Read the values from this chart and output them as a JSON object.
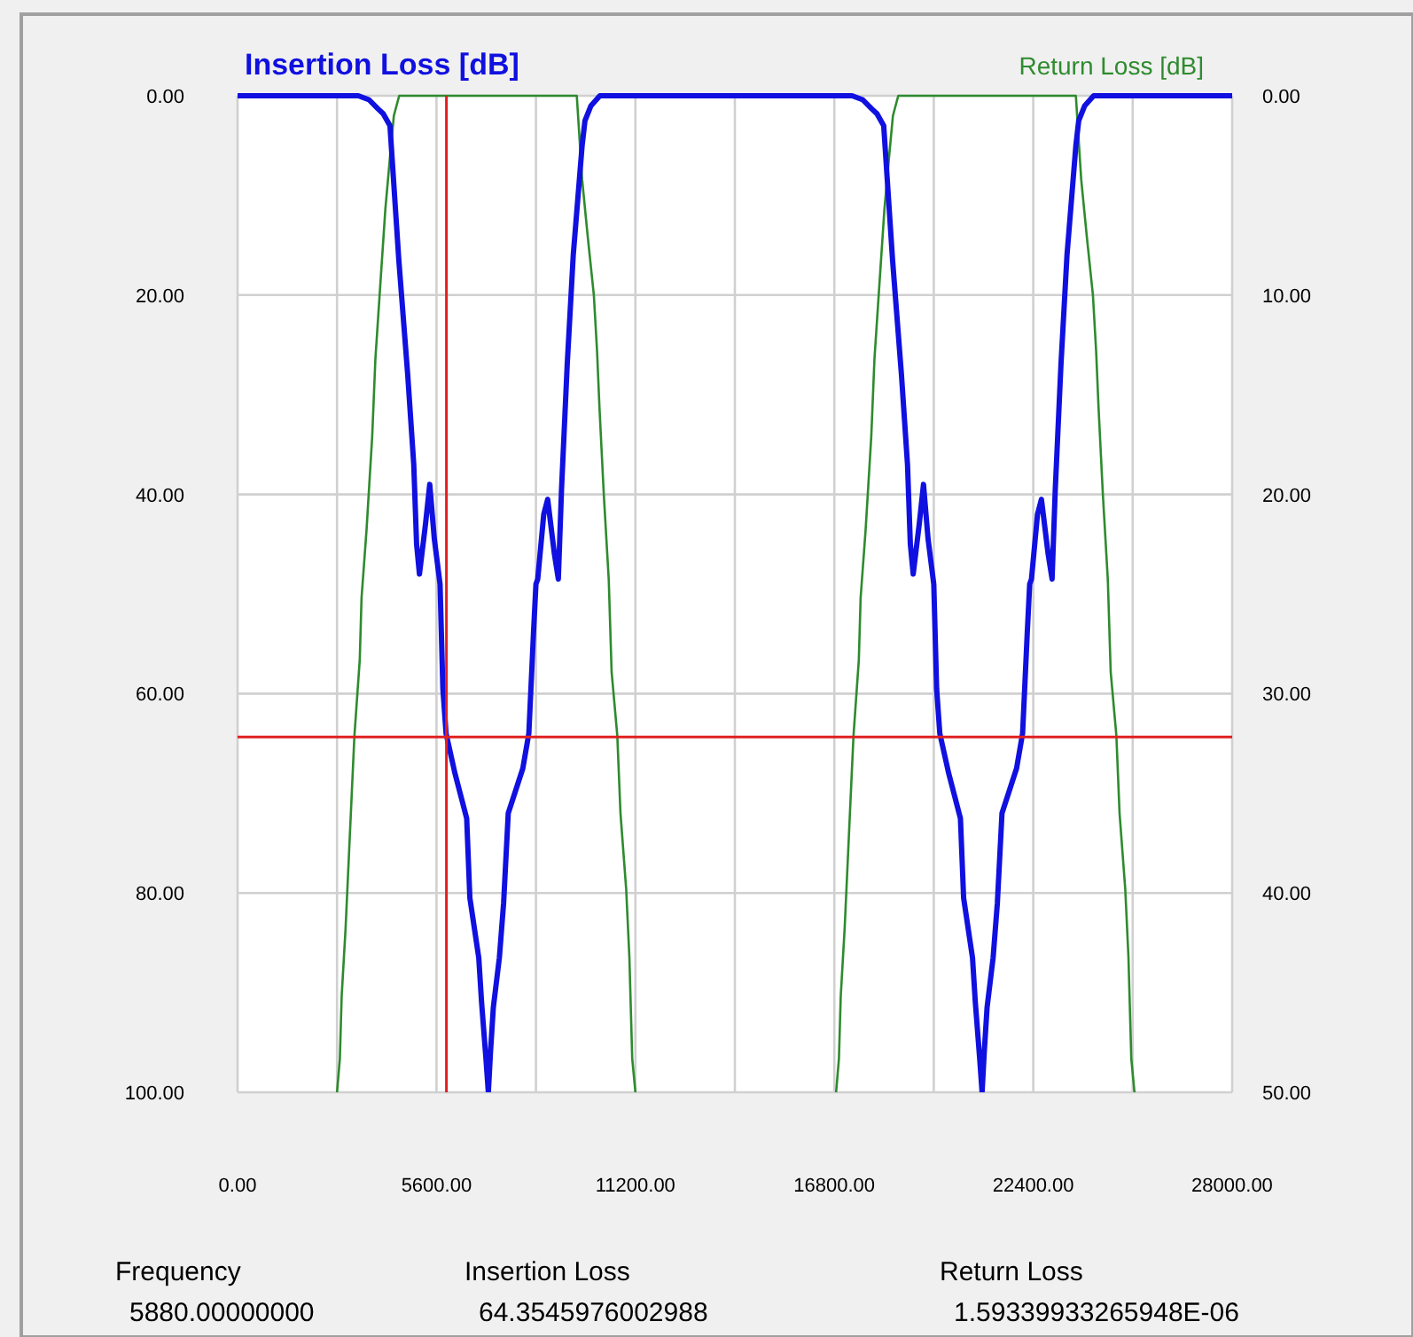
{
  "chart_data": {
    "type": "line",
    "legend": "top",
    "grid": true,
    "marker": "none",
    "line_style": "solid",
    "xlim": [
      0,
      28000
    ],
    "xticks": [
      {
        "value": 0,
        "label": "0.00"
      },
      {
        "value": 2800,
        "label": null
      },
      {
        "value": 5600,
        "label": "5600.00"
      },
      {
        "value": 8400,
        "label": null
      },
      {
        "value": 11200,
        "label": "11200.00"
      },
      {
        "value": 14000,
        "label": null
      },
      {
        "value": 16800,
        "label": "16800.00"
      },
      {
        "value": 19600,
        "label": null
      },
      {
        "value": 22400,
        "label": "22400.00"
      },
      {
        "value": 25200,
        "label": null
      },
      {
        "value": 28000,
        "label": "28000.00"
      }
    ],
    "ylim": [
      100,
      0
    ],
    "yticks": [
      {
        "value": 0,
        "label": "0.00"
      },
      {
        "value": 20,
        "label": "20.00"
      },
      {
        "value": 40,
        "label": "40.00"
      },
      {
        "value": 60,
        "label": "60.00"
      },
      {
        "value": 80,
        "label": "80.00"
      },
      {
        "value": 100,
        "label": "100.00"
      }
    ],
    "y2lim": [
      50,
      0
    ],
    "y2ticks": [
      {
        "value": 0,
        "label": "0.00"
      },
      {
        "value": 10,
        "label": "10.00"
      },
      {
        "value": 20,
        "label": "20.00"
      },
      {
        "value": 30,
        "label": "30.00"
      },
      {
        "value": 40,
        "label": "40.00"
      },
      {
        "value": 50,
        "label": "50.00"
      }
    ],
    "ref_lines": [
      {
        "axis": "x",
        "value": 5880,
        "color": "#e02020"
      },
      {
        "axis": "y",
        "value": 64.35,
        "color": "#e02020"
      }
    ],
    "annotations": [
      "Frequency",
      "5880.00000000",
      "Insertion Loss",
      "64.3545976002988",
      "Return Loss",
      "1.59339933265948E-06"
    ],
    "series": [
      {
        "name": "Return Loss [dB]",
        "color": "#2e8b2e",
        "axis": "y2",
        "x": [
          2800,
          2880,
          2930,
          3040,
          3130,
          3210,
          3290,
          3440,
          3490,
          3630,
          3790,
          3880,
          4040,
          4160,
          4290,
          4400,
          4550,
          9550,
          9700,
          9860,
          10030,
          10120,
          10190,
          10310,
          10450,
          10530,
          10690,
          10780,
          10940,
          11030,
          11110,
          11200,
          14000,
          16850,
          16930,
          16980,
          17090,
          17180,
          17260,
          17340,
          17490,
          17540,
          17680,
          17840,
          17930,
          18090,
          18210,
          18340,
          18450,
          18600,
          23600,
          23750,
          23910,
          24080,
          24170,
          24240,
          24360,
          24500,
          24580,
          24740,
          24830,
          24990,
          25080,
          25160,
          25250
        ],
        "values": [
          50,
          48.3,
          45.2,
          41.8,
          38.3,
          35.2,
          32.1,
          28.3,
          25.2,
          21.8,
          17.1,
          13.2,
          8.9,
          5.7,
          3.1,
          1,
          0,
          0,
          4.2,
          7.1,
          10,
          12.8,
          15.7,
          20,
          24.3,
          28.9,
          32.1,
          36,
          39.8,
          43.2,
          48.3,
          50,
          null,
          50,
          48.3,
          45.2,
          41.8,
          38.3,
          35.2,
          32.1,
          28.3,
          25.2,
          21.8,
          17.1,
          13.2,
          8.9,
          5.7,
          3.1,
          1,
          0,
          0,
          4.2,
          7.1,
          10,
          12.8,
          15.7,
          20,
          24.3,
          28.9,
          32.1,
          36,
          39.8,
          43.2,
          48.3,
          50
        ]
      },
      {
        "name": "Insertion Loss [dB]",
        "color": "#1010e0",
        "x": [
          0,
          3400,
          3700,
          3950,
          4100,
          4290,
          4540,
          4790,
          4960,
          5040,
          5120,
          5290,
          5410,
          5540,
          5700,
          5780,
          5870,
          6120,
          6450,
          6540,
          6790,
          6870,
          6990,
          7060,
          7120,
          7200,
          7370,
          7490,
          7620,
          8030,
          8200,
          8330,
          8400,
          8450,
          8620,
          8730,
          8920,
          9030,
          9120,
          9280,
          9450,
          9700,
          9780,
          9950,
          10200,
          17300,
          17600,
          17850,
          18000,
          18190,
          18440,
          18690,
          18860,
          18940,
          19020,
          19190,
          19310,
          19440,
          19600,
          19680,
          19770,
          20020,
          20350,
          20440,
          20690,
          20770,
          20890,
          20960,
          21020,
          21100,
          21270,
          21390,
          21520,
          21930,
          22100,
          22230,
          22300,
          22350,
          22520,
          22630,
          22820,
          22930,
          23020,
          23180,
          23350,
          23600,
          23680,
          23850,
          24100,
          28000
        ],
        "values": [
          0,
          0,
          0.4,
          1.3,
          1.8,
          3,
          16.5,
          28,
          37,
          45,
          48,
          43,
          39,
          44.5,
          49,
          59.5,
          64,
          68,
          72.5,
          80.5,
          86.5,
          91,
          96.5,
          100,
          96,
          91.5,
          86.5,
          81,
          72,
          67.5,
          64,
          54,
          49,
          48.5,
          42,
          40.5,
          46,
          48.5,
          39.5,
          27,
          16,
          5,
          2.5,
          1,
          0,
          0,
          0.4,
          1.3,
          1.8,
          3,
          16.5,
          28,
          37,
          45,
          48,
          43,
          39,
          44.5,
          49,
          59.5,
          64,
          68,
          72.5,
          80.5,
          86.5,
          91,
          96.5,
          100,
          96,
          91.5,
          86.5,
          81,
          72,
          67.5,
          64,
          54,
          49,
          48.5,
          42,
          40.5,
          46,
          48.5,
          39.5,
          27,
          16,
          5,
          2.5,
          1,
          0,
          0
        ]
      }
    ]
  }
}
